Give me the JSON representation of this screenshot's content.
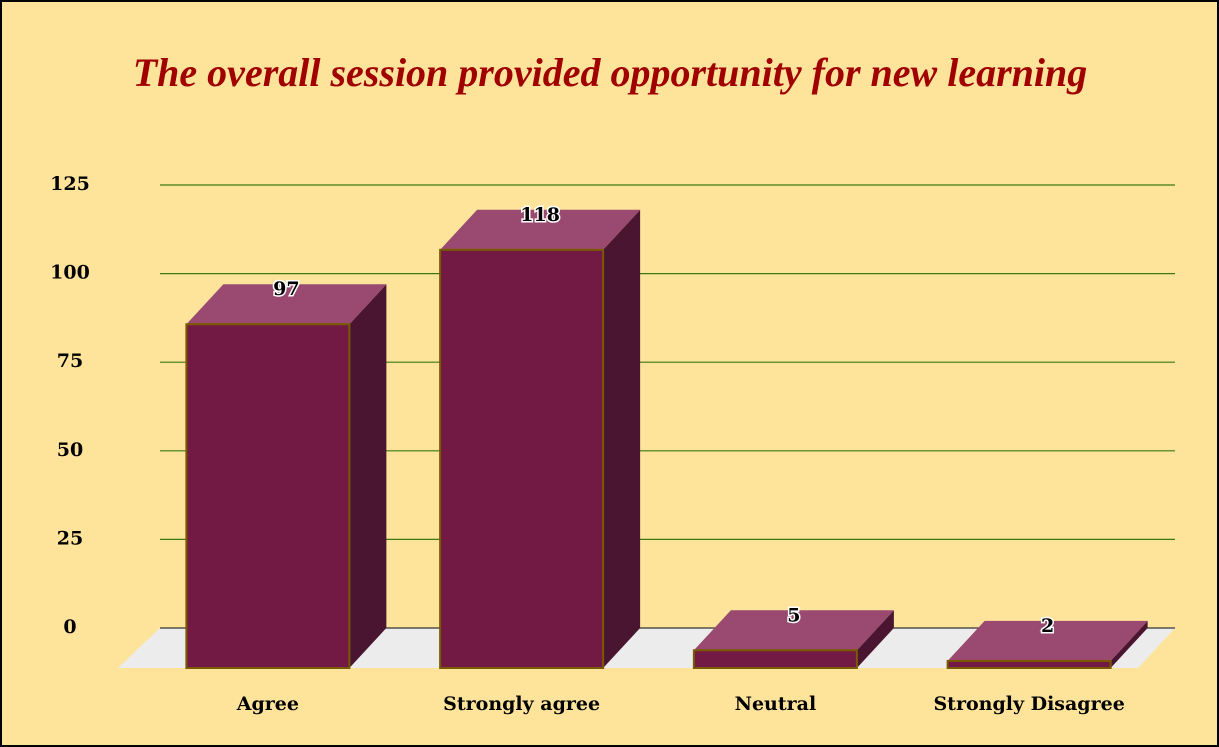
{
  "chart_data": {
    "type": "bar3d",
    "title": "The overall session provided opportunity for new learning",
    "categories": [
      "Agree",
      "Strongly agree",
      "Neutral",
      "Strongly Disagree"
    ],
    "values": [
      97,
      118,
      5,
      2
    ],
    "color": "#721a44",
    "ylim": [
      0,
      125
    ],
    "yticks": [
      0,
      25,
      50,
      75,
      100,
      125
    ],
    "grid": true
  }
}
